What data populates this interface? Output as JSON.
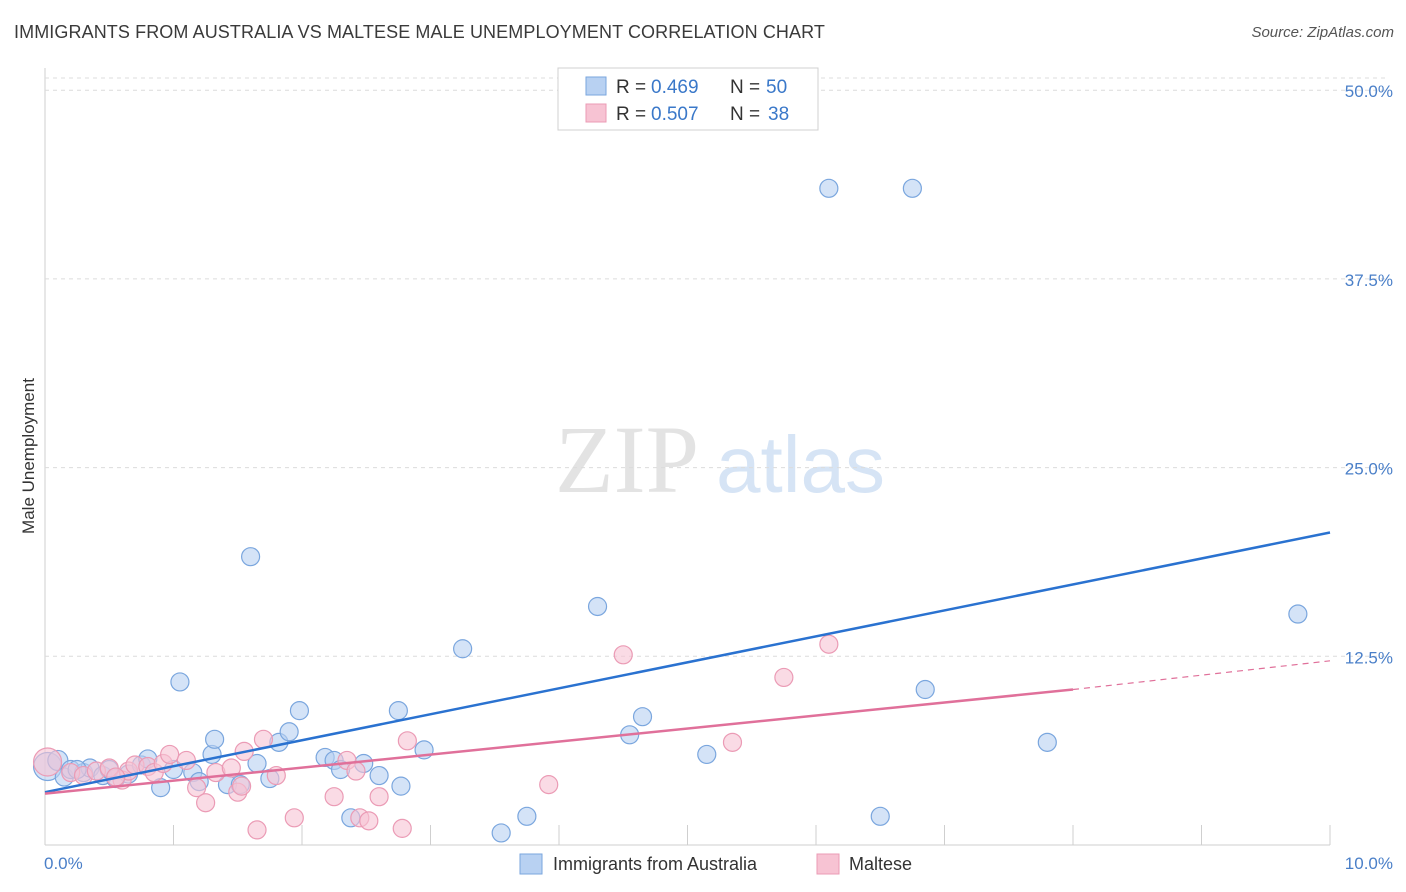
{
  "title": "IMMIGRANTS FROM AUSTRALIA VS MALTESE MALE UNEMPLOYMENT CORRELATION CHART",
  "source": "Source: ZipAtlas.com",
  "watermark": {
    "zip": "ZIP",
    "atlas": "atlas"
  },
  "colors": {
    "blue_fill": "#b8d1f2",
    "blue_stroke": "#7aa6de",
    "blue_line": "#2a72d0",
    "pink_fill": "#f7c3d3",
    "pink_stroke": "#eb9bb5",
    "pink_line": "#e0709a",
    "grid": "#dcdcdc",
    "tick_text": "#4a7fc8"
  },
  "chart_data": {
    "type": "scatter",
    "title": "IMMIGRANTS FROM AUSTRALIA VS MALTESE MALE UNEMPLOYMENT CORRELATION CHART",
    "xlabel": "",
    "ylabel": "Male Unemployment",
    "xlim": [
      0,
      10
    ],
    "ylim": [
      0,
      52
    ],
    "x_tick_labels": [
      "0.0%",
      "10.0%"
    ],
    "y_ticks": [
      12.5,
      25.0,
      37.5,
      50.0
    ],
    "y_tick_labels": [
      "12.5%",
      "25.0%",
      "37.5%",
      "50.0%"
    ],
    "grid": true,
    "legend": [
      {
        "label": "R = ",
        "r": "0.469",
        "n_label": "N = ",
        "n": "50"
      },
      {
        "label": "R = ",
        "r": "0.507",
        "n_label": "N = ",
        "n": "38"
      }
    ],
    "bottom_legend": [
      "Immigrants from Australia",
      "Maltese"
    ],
    "series": [
      {
        "name": "Immigrants from Australia",
        "r": 0.469,
        "n": 50,
        "trend": {
          "x0": 0.0,
          "y0": 3.5,
          "x1": 10.0,
          "y1": 20.7,
          "dashed_from": null
        },
        "points": [
          [
            0.02,
            5.2,
            14
          ],
          [
            0.1,
            5.6,
            10
          ],
          [
            0.15,
            4.5,
            9
          ],
          [
            0.2,
            5.0,
            9
          ],
          [
            0.3,
            4.8,
            9
          ],
          [
            0.35,
            5.1,
            9
          ],
          [
            0.45,
            4.6,
            9
          ],
          [
            0.55,
            4.4,
            9
          ],
          [
            0.65,
            4.7,
            9
          ],
          [
            0.75,
            5.3,
            9
          ],
          [
            0.8,
            5.7,
            9
          ],
          [
            0.9,
            3.8,
            9
          ],
          [
            1.0,
            5.0,
            9
          ],
          [
            1.05,
            10.8,
            9
          ],
          [
            1.15,
            4.8,
            9
          ],
          [
            1.2,
            4.2,
            9
          ],
          [
            1.3,
            6.0,
            9
          ],
          [
            1.32,
            7.0,
            9
          ],
          [
            1.42,
            4.0,
            9
          ],
          [
            1.52,
            4.0,
            9
          ],
          [
            1.6,
            19.1,
            9
          ],
          [
            1.65,
            5.4,
            9
          ],
          [
            1.75,
            4.4,
            9
          ],
          [
            1.82,
            6.8,
            9
          ],
          [
            1.9,
            7.5,
            9
          ],
          [
            1.98,
            8.9,
            9
          ],
          [
            2.18,
            5.8,
            9
          ],
          [
            2.25,
            5.6,
            9
          ],
          [
            2.3,
            5.0,
            9
          ],
          [
            2.38,
            1.8,
            9
          ],
          [
            2.48,
            5.4,
            9
          ],
          [
            2.6,
            4.6,
            9
          ],
          [
            2.75,
            8.9,
            9
          ],
          [
            2.77,
            3.9,
            9
          ],
          [
            2.95,
            6.3,
            9
          ],
          [
            3.25,
            13.0,
            9
          ],
          [
            3.55,
            0.8,
            9
          ],
          [
            3.75,
            1.9,
            9
          ],
          [
            4.3,
            15.8,
            9
          ],
          [
            4.55,
            7.3,
            9
          ],
          [
            4.65,
            8.5,
            9
          ],
          [
            5.15,
            6.0,
            9
          ],
          [
            6.1,
            43.5,
            9
          ],
          [
            6.75,
            43.5,
            9
          ],
          [
            6.5,
            1.9,
            9
          ],
          [
            6.85,
            10.3,
            9
          ],
          [
            7.8,
            6.8,
            9
          ],
          [
            9.75,
            15.3,
            9
          ],
          [
            0.5,
            5.0,
            9
          ],
          [
            0.25,
            5.0,
            9
          ]
        ]
      },
      {
        "name": "Maltese",
        "r": 0.507,
        "n": 38,
        "trend": {
          "x0": 0.0,
          "y0": 3.4,
          "x1": 8.0,
          "y1": 10.3,
          "dashed_from": 8.0,
          "x2": 10.0,
          "y2": 12.2
        },
        "points": [
          [
            0.02,
            5.5,
            14
          ],
          [
            0.2,
            4.8,
            9
          ],
          [
            0.3,
            4.6,
            9
          ],
          [
            0.4,
            4.9,
            9
          ],
          [
            0.5,
            5.1,
            9
          ],
          [
            0.6,
            4.3,
            9
          ],
          [
            0.65,
            4.9,
            9
          ],
          [
            0.7,
            5.3,
            9
          ],
          [
            0.8,
            5.2,
            9
          ],
          [
            0.85,
            4.8,
            9
          ],
          [
            0.92,
            5.4,
            9
          ],
          [
            0.97,
            6.0,
            9
          ],
          [
            1.1,
            5.6,
            9
          ],
          [
            1.18,
            3.8,
            9
          ],
          [
            1.25,
            2.8,
            9
          ],
          [
            1.33,
            4.8,
            9
          ],
          [
            1.45,
            5.1,
            9
          ],
          [
            1.5,
            3.5,
            9
          ],
          [
            1.53,
            3.9,
            9
          ],
          [
            1.55,
            6.2,
            9
          ],
          [
            1.65,
            1.0,
            9
          ],
          [
            1.7,
            7.0,
            9
          ],
          [
            1.8,
            4.6,
            9
          ],
          [
            1.94,
            1.8,
            9
          ],
          [
            2.25,
            3.2,
            9
          ],
          [
            2.35,
            5.6,
            9
          ],
          [
            2.42,
            4.9,
            9
          ],
          [
            2.45,
            1.8,
            9
          ],
          [
            2.52,
            1.6,
            9
          ],
          [
            2.6,
            3.2,
            9
          ],
          [
            2.78,
            1.1,
            9
          ],
          [
            2.82,
            6.9,
            9
          ],
          [
            3.92,
            4.0,
            9
          ],
          [
            4.5,
            12.6,
            9
          ],
          [
            5.35,
            6.8,
            9
          ],
          [
            5.75,
            11.1,
            9
          ],
          [
            6.1,
            13.3,
            9
          ],
          [
            0.55,
            4.5,
            9
          ]
        ]
      }
    ]
  }
}
